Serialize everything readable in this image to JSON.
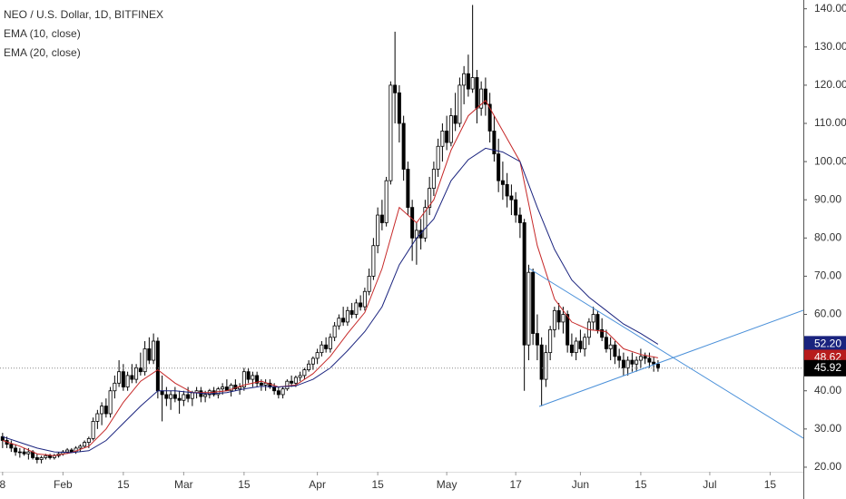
{
  "chart_data": {
    "type": "candlestick",
    "title": "NEO / U.S. Dollar, 1D, BITFINEX",
    "xlim": [
      -0.6,
      185.7
    ],
    "ylim": [
      18.8,
      142.3
    ],
    "xticks": [
      {
        "value": 0,
        "label": "8"
      },
      {
        "value": 14,
        "label": "Feb"
      },
      {
        "value": 28,
        "label": "15"
      },
      {
        "value": 42,
        "label": "Mar"
      },
      {
        "value": 56,
        "label": "15"
      },
      {
        "value": 73,
        "label": "Apr"
      },
      {
        "value": 87,
        "label": "15"
      },
      {
        "value": 103,
        "label": "May"
      },
      {
        "value": 119,
        "label": "17"
      },
      {
        "value": 134,
        "label": "Jun"
      },
      {
        "value": 148,
        "label": "15"
      },
      {
        "value": 164,
        "label": "Jul"
      },
      {
        "value": 178,
        "label": "15"
      }
    ],
    "yticks": [
      {
        "value": 20,
        "label": "20.00"
      },
      {
        "value": 30,
        "label": "30.00"
      },
      {
        "value": 40,
        "label": "40.00"
      },
      {
        "value": 50,
        "label": "50.00"
      },
      {
        "value": 60,
        "label": "60.00"
      },
      {
        "value": 70,
        "label": "70.00"
      },
      {
        "value": 80,
        "label": "80.00"
      },
      {
        "value": 90,
        "label": "90.00"
      },
      {
        "value": 100,
        "label": "100.00"
      },
      {
        "value": 110,
        "label": "110.00"
      },
      {
        "value": 120,
        "label": "120.00"
      },
      {
        "value": 130,
        "label": "130.00"
      },
      {
        "value": 140,
        "label": "140.00"
      }
    ],
    "up_color": "#ffffff",
    "down_color": "#000000",
    "ohlc": [
      [
        28,
        29,
        25,
        27
      ],
      [
        27,
        28,
        25,
        26
      ],
      [
        26,
        27,
        24,
        25
      ],
      [
        25,
        26,
        23,
        24
      ],
      [
        24,
        25,
        22.5,
        24
      ],
      [
        24,
        25,
        23,
        23.5
      ],
      [
        23.5,
        25,
        22,
        24
      ],
      [
        24,
        24.5,
        22,
        22.5
      ],
      [
        22.5,
        23.5,
        21,
        22
      ],
      [
        22,
        23,
        21,
        22.5
      ],
      [
        22.5,
        23.5,
        22,
        23
      ],
      [
        23,
        23.5,
        22,
        22.5
      ],
      [
        22.5,
        23.5,
        22,
        23
      ],
      [
        23,
        24,
        22.5,
        23.5
      ],
      [
        23.5,
        24.5,
        23,
        24
      ],
      [
        24,
        25,
        23.5,
        24.5
      ],
      [
        24.5,
        25,
        24,
        24
      ],
      [
        24,
        25.5,
        23.5,
        25
      ],
      [
        25,
        26,
        24,
        25.5
      ],
      [
        25.5,
        27,
        25,
        26.5
      ],
      [
        26.5,
        28,
        25,
        27.5
      ],
      [
        27.5,
        33,
        27,
        32
      ],
      [
        32,
        35,
        30,
        34
      ],
      [
        34,
        37,
        31,
        36
      ],
      [
        36,
        38,
        33,
        34
      ],
      [
        34,
        41,
        33,
        40
      ],
      [
        40,
        44,
        38,
        42
      ],
      [
        42,
        48,
        41,
        45
      ],
      [
        45,
        47,
        40,
        41
      ],
      [
        41,
        45,
        40,
        44
      ],
      [
        44,
        47,
        42,
        43
      ],
      [
        43,
        47,
        42,
        46
      ],
      [
        46,
        50,
        44,
        45
      ],
      [
        45,
        53,
        44,
        51
      ],
      [
        51,
        54,
        47,
        48
      ],
      [
        48,
        55,
        47,
        53
      ],
      [
        53,
        54,
        38,
        40
      ],
      [
        40,
        44,
        32,
        39
      ],
      [
        39,
        41,
        36,
        38
      ],
      [
        38,
        40,
        35,
        39
      ],
      [
        39,
        41,
        37,
        38
      ],
      [
        38,
        40,
        34,
        37.5
      ],
      [
        37.5,
        40,
        36,
        39
      ],
      [
        39,
        41,
        37,
        38
      ],
      [
        38,
        40,
        36,
        39.5
      ],
      [
        39.5,
        41,
        38,
        40
      ],
      [
        40,
        41,
        37,
        38.5
      ],
      [
        38.5,
        40,
        37,
        39
      ],
      [
        39,
        40.5,
        38,
        40
      ],
      [
        40,
        41,
        38.5,
        39
      ],
      [
        39,
        41,
        38,
        40.5
      ],
      [
        40.5,
        42,
        39,
        41
      ],
      [
        41,
        43,
        40,
        40
      ],
      [
        40,
        42,
        38.5,
        41.5
      ],
      [
        41.5,
        43,
        40,
        40.5
      ],
      [
        40.5,
        42,
        39,
        41
      ],
      [
        41,
        46,
        40,
        45
      ],
      [
        45,
        46,
        42,
        43
      ],
      [
        43,
        45,
        41,
        44
      ],
      [
        44,
        45,
        41,
        42
      ],
      [
        42,
        43,
        40,
        41.5
      ],
      [
        41.5,
        43,
        40,
        42
      ],
      [
        42,
        43,
        40.5,
        41
      ],
      [
        41,
        42,
        39,
        40
      ],
      [
        40,
        41,
        38,
        39
      ],
      [
        39,
        41,
        38,
        40.5
      ],
      [
        40.5,
        43,
        40,
        42.5
      ],
      [
        42.5,
        44,
        41,
        42
      ],
      [
        42,
        44,
        41,
        43.5
      ],
      [
        43.5,
        45,
        42.5,
        44
      ],
      [
        44,
        46,
        43,
        45.5
      ],
      [
        45.5,
        48,
        45,
        47
      ],
      [
        47,
        49,
        45.5,
        48.5
      ],
      [
        48.5,
        51,
        47,
        50
      ],
      [
        50,
        53,
        49,
        52
      ],
      [
        52,
        54,
        50,
        51
      ],
      [
        51,
        55,
        50,
        54
      ],
      [
        54,
        58,
        53,
        57
      ],
      [
        57,
        60,
        56,
        59
      ],
      [
        59,
        62,
        57,
        58
      ],
      [
        58,
        62,
        57,
        61
      ],
      [
        61,
        63,
        59,
        60
      ],
      [
        60,
        64,
        59,
        63
      ],
      [
        63,
        65,
        61,
        62
      ],
      [
        62,
        67,
        61,
        66
      ],
      [
        66,
        72,
        65,
        70
      ],
      [
        70,
        80,
        69,
        78
      ],
      [
        78,
        88,
        76,
        86
      ],
      [
        86,
        90,
        82,
        84
      ],
      [
        84,
        96,
        83,
        95
      ],
      [
        95,
        121,
        94,
        120
      ],
      [
        120,
        134,
        110,
        118
      ],
      [
        118,
        120,
        105,
        110
      ],
      [
        110,
        112,
        95,
        98
      ],
      [
        98,
        100,
        86,
        88
      ],
      [
        88,
        90,
        74,
        80
      ],
      [
        80,
        84,
        73,
        82
      ],
      [
        82,
        85,
        77,
        80
      ],
      [
        80,
        90,
        79,
        88
      ],
      [
        88,
        96,
        86,
        93
      ],
      [
        93,
        100,
        91,
        98
      ],
      [
        98,
        106,
        96,
        104
      ],
      [
        104,
        110,
        100,
        108
      ],
      [
        108,
        112,
        103,
        105
      ],
      [
        105,
        114,
        104,
        112
      ],
      [
        112,
        118,
        108,
        110
      ],
      [
        110,
        122,
        109,
        120
      ],
      [
        120,
        125,
        115,
        123
      ],
      [
        123,
        128,
        117,
        119
      ],
      [
        119,
        141,
        118,
        122
      ],
      [
        122,
        124,
        110,
        114
      ],
      [
        114,
        121,
        112,
        119
      ],
      [
        119,
        122,
        112,
        115
      ],
      [
        115,
        118,
        105,
        108
      ],
      [
        108,
        112,
        100,
        102
      ],
      [
        102,
        106,
        92,
        95
      ],
      [
        95,
        100,
        90,
        94
      ],
      [
        94,
        97,
        88,
        91
      ],
      [
        91,
        94,
        86,
        90
      ],
      [
        90,
        92,
        84,
        86
      ],
      [
        86,
        88,
        80,
        84
      ],
      [
        84,
        85,
        40,
        52
      ],
      [
        52,
        73,
        48,
        71
      ],
      [
        71,
        72,
        52,
        55
      ],
      [
        55,
        60,
        48,
        52
      ],
      [
        52,
        54,
        36,
        43
      ],
      [
        43,
        52,
        41,
        50
      ],
      [
        50,
        57,
        48,
        56
      ],
      [
        56,
        62,
        54,
        61
      ],
      [
        61,
        63,
        56,
        58
      ],
      [
        58,
        62,
        55,
        60
      ],
      [
        60,
        61,
        50,
        52
      ],
      [
        52,
        55,
        49,
        50
      ],
      [
        50,
        54,
        48,
        53
      ],
      [
        53,
        56,
        50,
        51
      ],
      [
        51,
        55,
        49,
        54
      ],
      [
        54,
        59,
        52,
        58
      ],
      [
        58,
        62,
        56,
        60
      ],
      [
        60,
        61,
        55,
        56
      ],
      [
        56,
        59,
        53,
        54
      ],
      [
        54,
        56,
        50,
        51
      ],
      [
        51,
        54,
        48,
        52
      ],
      [
        52,
        53,
        47,
        49
      ],
      [
        49,
        51,
        46,
        48
      ],
      [
        48,
        50,
        44,
        46
      ],
      [
        46,
        49,
        44,
        48
      ],
      [
        48,
        50,
        45,
        47
      ],
      [
        47,
        49,
        45,
        48
      ],
      [
        48,
        51,
        46,
        49
      ],
      [
        49,
        50,
        47,
        48.5
      ],
      [
        48.5,
        50,
        46,
        47.5
      ],
      [
        47.5,
        49,
        45,
        47
      ],
      [
        47,
        48,
        45,
        45.92
      ]
    ],
    "series": [
      {
        "name": "EMA (10, close)",
        "color": "#c62828",
        "x": [
          0,
          4,
          8,
          12,
          16,
          20,
          24,
          28,
          32,
          36,
          40,
          44,
          48,
          52,
          56,
          60,
          64,
          68,
          72,
          76,
          80,
          84,
          88,
          92,
          96,
          100,
          104,
          108,
          112,
          116,
          120,
          124,
          128,
          132,
          136,
          140,
          144,
          148,
          152
        ],
        "values": [
          27,
          25.5,
          23.5,
          23,
          23.8,
          25.5,
          30,
          37,
          42.5,
          45.5,
          42,
          39.5,
          39.5,
          40,
          41.5,
          42.5,
          41,
          41.5,
          44.5,
          49,
          55,
          60.5,
          72,
          88,
          84,
          90,
          103,
          112,
          116,
          108,
          100,
          78,
          64,
          58,
          56,
          55.5,
          51,
          49.5,
          48.62
        ]
      },
      {
        "name": "EMA (20, close)",
        "color": "#1a237e",
        "x": [
          0,
          4,
          8,
          12,
          16,
          20,
          24,
          28,
          32,
          36,
          40,
          44,
          48,
          52,
          56,
          60,
          64,
          68,
          72,
          76,
          80,
          84,
          88,
          92,
          96,
          100,
          104,
          108,
          112,
          116,
          120,
          124,
          128,
          132,
          136,
          140,
          144,
          148,
          152
        ],
        "values": [
          28,
          26.5,
          25,
          24,
          23.8,
          24.3,
          27,
          31.5,
          36,
          40,
          40,
          39.5,
          39.2,
          39.5,
          40.5,
          41.2,
          41,
          41.3,
          43,
          46,
          50.5,
          55.5,
          62,
          73,
          80,
          85,
          95,
          100.5,
          103.5,
          102.5,
          100,
          88,
          77,
          69,
          64.5,
          61,
          57.5,
          55,
          52.2
        ]
      }
    ],
    "price_labels": [
      {
        "value": 52.2,
        "label": "52.20",
        "color": "#1a237e"
      },
      {
        "value": 48.62,
        "label": "48.62",
        "color": "#b71c1c"
      },
      {
        "value": 45.92,
        "label": "45.92",
        "color": "#000000"
      }
    ]
  }
}
